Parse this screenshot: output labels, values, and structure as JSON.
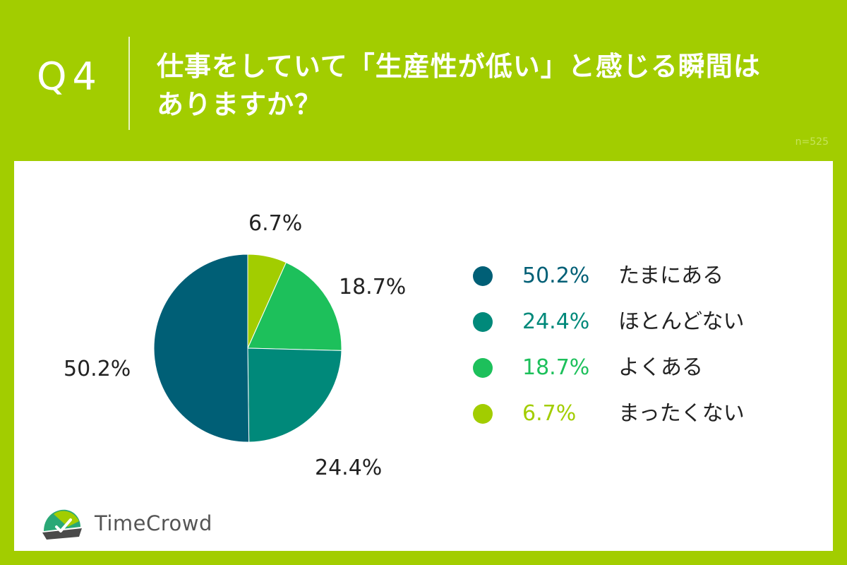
{
  "header": {
    "question_label": "Q4",
    "title_line1": "仕事をしていて「生産性が低い」と感じる瞬間は",
    "title_line2": "ありますか？",
    "sample_size": "n=525"
  },
  "chart_data": {
    "type": "pie",
    "title": "仕事をしていて「生産性が低い」と感じる瞬間はありますか？",
    "slices": [
      {
        "label": "まったくない",
        "value": 6.7,
        "display": "6.7%",
        "color": "#a2cd00"
      },
      {
        "label": "よくある",
        "value": 18.7,
        "display": "18.7%",
        "color": "#1dc05b"
      },
      {
        "label": "ほとんどない",
        "value": 24.4,
        "display": "24.4%",
        "color": "#00897a"
      },
      {
        "label": "たまにある",
        "value": 50.2,
        "display": "50.2%",
        "color": "#005f76"
      }
    ],
    "legend": [
      {
        "pct": "50.2%",
        "label": "たまにある",
        "color": "#005f76"
      },
      {
        "pct": "24.4%",
        "label": "ほとんどない",
        "color": "#00897a"
      },
      {
        "pct": "18.7%",
        "label": "よくある",
        "color": "#1dc05b"
      },
      {
        "pct": "6.7%",
        "label": "まったくない",
        "color": "#a2cd00"
      }
    ],
    "legend_placement": "right"
  },
  "logo": {
    "text": "TimeCrowd"
  }
}
